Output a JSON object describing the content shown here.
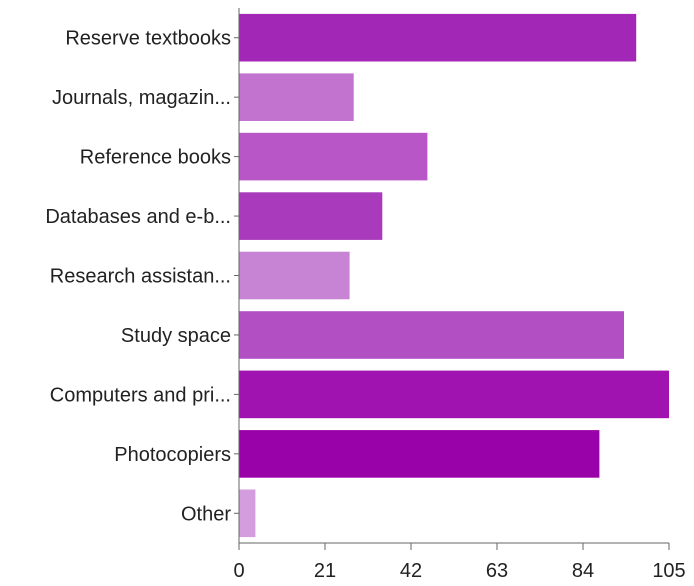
{
  "chart_data": {
    "type": "bar",
    "orientation": "horizontal",
    "title": "",
    "xlabel": "",
    "ylabel": "",
    "categories": [
      "Reserve textbooks",
      "Journals, magazin...",
      "Reference books",
      "Databases and e-b...",
      "Research assistan...",
      "Study space",
      "Computers and pri...",
      "Photocopiers",
      "Other"
    ],
    "values": [
      97,
      28,
      46,
      35,
      27,
      94,
      105,
      88,
      4
    ],
    "bar_colors": [
      "#a327b6",
      "#c272cf",
      "#b856c7",
      "#a93abb",
      "#c884d4",
      "#b24fc3",
      "#a113b0",
      "#9902a8",
      "#d49ddd"
    ],
    "xlim": [
      0,
      105
    ],
    "xticks": [
      0,
      21,
      42,
      63,
      84,
      105
    ],
    "grid": false,
    "legend": "none"
  }
}
